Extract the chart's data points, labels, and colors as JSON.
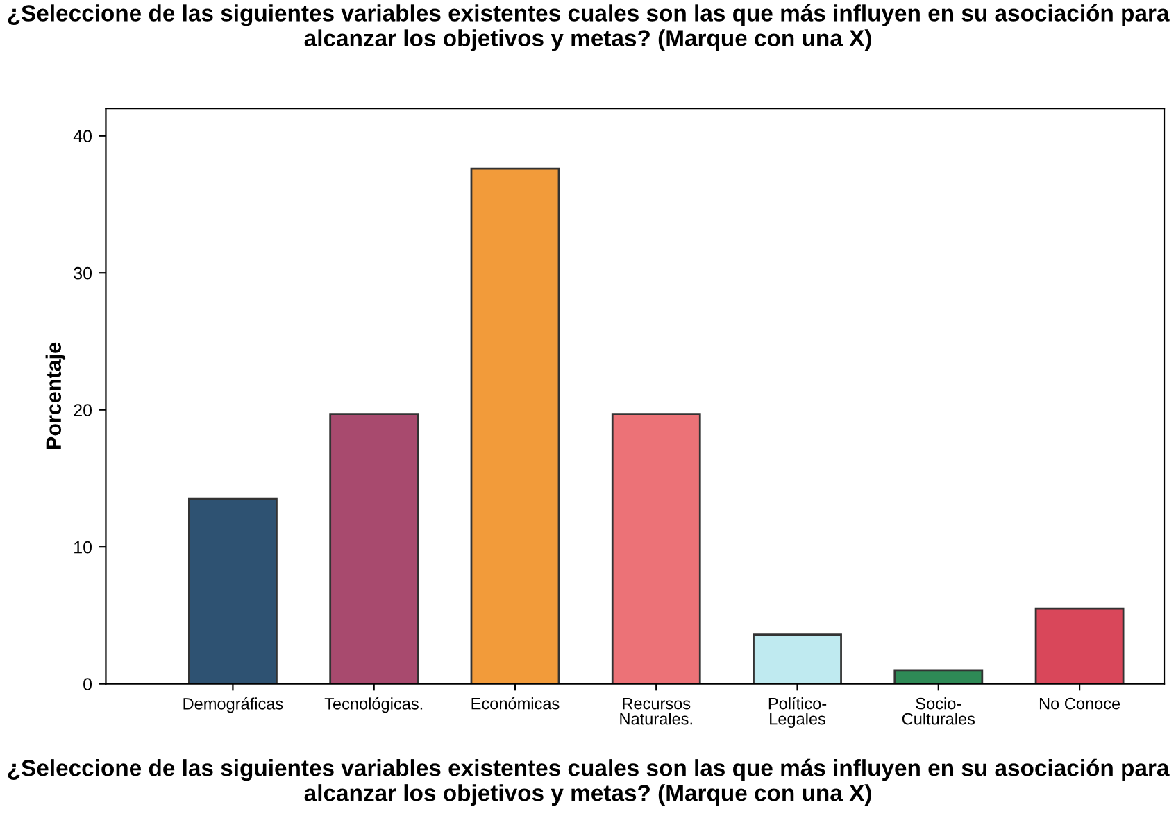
{
  "chart_data": {
    "type": "bar",
    "title": "¿Seleccione de las siguientes variables existentes cuales son las que más influyen en su asociación para alcanzar los objetivos y metas? (Marque con una X)",
    "xlabel": "¿Seleccione de las siguientes variables existentes cuales son las que más influyen en su asociación para alcanzar los objetivos y metas? (Marque con una X)",
    "ylabel": "Porcentaje",
    "categories": [
      "Demográficas",
      "Tecnológicas.",
      "Económicas",
      "Recursos\nNaturales.",
      "Político-\nLegales",
      "Socio-\nCulturales",
      "No Conoce"
    ],
    "values": [
      13.5,
      19.7,
      37.6,
      19.7,
      3.6,
      1.0,
      5.5
    ],
    "colors": [
      "#2e5272",
      "#a84a6e",
      "#f29b3a",
      "#ec7277",
      "#bfeaf0",
      "#2e8a56",
      "#d9475a"
    ],
    "ylim": [
      0,
      42
    ],
    "yticks": [
      0,
      10,
      20,
      30,
      40
    ],
    "grid": false,
    "legend": false
  }
}
